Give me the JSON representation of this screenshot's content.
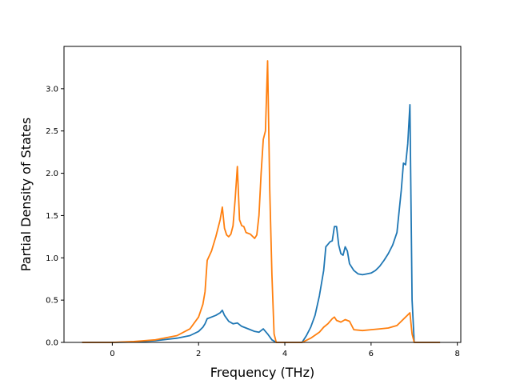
{
  "chart_data": {
    "type": "line",
    "title": "",
    "xlabel": "Frequency (THz)",
    "ylabel": "Partial Density of States",
    "xlim": [
      -1.12,
      8.08
    ],
    "ylim": [
      0.0,
      3.5
    ],
    "xticks": [
      0,
      2,
      4,
      6,
      8
    ],
    "xtick_labels": [
      "0",
      "2",
      "4",
      "6",
      "8"
    ],
    "yticks": [
      0.0,
      0.5,
      1.0,
      1.5,
      2.0,
      2.5,
      3.0
    ],
    "ytick_labels": [
      "0.0",
      "0.5",
      "1.0",
      "1.5",
      "2.0",
      "2.5",
      "3.0"
    ],
    "grid": false,
    "legend": "none",
    "series": [
      {
        "color": "#1f77b4",
        "points": [
          [
            -0.7,
            0.0
          ],
          [
            0.0,
            0.0
          ],
          [
            0.5,
            0.005
          ],
          [
            1.0,
            0.02
          ],
          [
            1.5,
            0.05
          ],
          [
            1.8,
            0.08
          ],
          [
            2.0,
            0.13
          ],
          [
            2.1,
            0.18
          ],
          [
            2.15,
            0.22
          ],
          [
            2.2,
            0.28
          ],
          [
            2.3,
            0.3
          ],
          [
            2.4,
            0.32
          ],
          [
            2.5,
            0.35
          ],
          [
            2.55,
            0.38
          ],
          [
            2.6,
            0.32
          ],
          [
            2.7,
            0.25
          ],
          [
            2.8,
            0.22
          ],
          [
            2.9,
            0.23
          ],
          [
            3.0,
            0.19
          ],
          [
            3.1,
            0.17
          ],
          [
            3.2,
            0.15
          ],
          [
            3.3,
            0.13
          ],
          [
            3.4,
            0.12
          ],
          [
            3.5,
            0.16
          ],
          [
            3.6,
            0.1
          ],
          [
            3.7,
            0.03
          ],
          [
            3.8,
            0.0
          ],
          [
            4.4,
            0.0
          ],
          [
            4.5,
            0.08
          ],
          [
            4.6,
            0.18
          ],
          [
            4.7,
            0.32
          ],
          [
            4.8,
            0.55
          ],
          [
            4.9,
            0.85
          ],
          [
            4.95,
            1.13
          ],
          [
            5.0,
            1.16
          ],
          [
            5.05,
            1.19
          ],
          [
            5.1,
            1.2
          ],
          [
            5.15,
            1.37
          ],
          [
            5.2,
            1.37
          ],
          [
            5.25,
            1.15
          ],
          [
            5.3,
            1.05
          ],
          [
            5.35,
            1.03
          ],
          [
            5.4,
            1.13
          ],
          [
            5.45,
            1.08
          ],
          [
            5.5,
            0.93
          ],
          [
            5.6,
            0.85
          ],
          [
            5.7,
            0.81
          ],
          [
            5.8,
            0.8
          ],
          [
            5.9,
            0.81
          ],
          [
            6.0,
            0.82
          ],
          [
            6.1,
            0.85
          ],
          [
            6.2,
            0.9
          ],
          [
            6.3,
            0.97
          ],
          [
            6.4,
            1.05
          ],
          [
            6.5,
            1.15
          ],
          [
            6.6,
            1.3
          ],
          [
            6.65,
            1.55
          ],
          [
            6.7,
            1.8
          ],
          [
            6.75,
            2.12
          ],
          [
            6.8,
            2.1
          ],
          [
            6.85,
            2.35
          ],
          [
            6.9,
            2.81
          ],
          [
            6.95,
            0.5
          ],
          [
            7.0,
            0.0
          ],
          [
            7.6,
            0.0
          ]
        ]
      },
      {
        "color": "#ff7f0e",
        "points": [
          [
            -0.7,
            0.0
          ],
          [
            0.0,
            0.0
          ],
          [
            0.5,
            0.01
          ],
          [
            1.0,
            0.03
          ],
          [
            1.5,
            0.08
          ],
          [
            1.8,
            0.16
          ],
          [
            2.0,
            0.3
          ],
          [
            2.1,
            0.45
          ],
          [
            2.15,
            0.6
          ],
          [
            2.2,
            0.97
          ],
          [
            2.3,
            1.08
          ],
          [
            2.4,
            1.25
          ],
          [
            2.5,
            1.45
          ],
          [
            2.55,
            1.6
          ],
          [
            2.6,
            1.35
          ],
          [
            2.65,
            1.27
          ],
          [
            2.7,
            1.25
          ],
          [
            2.75,
            1.28
          ],
          [
            2.8,
            1.38
          ],
          [
            2.85,
            1.7
          ],
          [
            2.9,
            2.08
          ],
          [
            2.95,
            1.45
          ],
          [
            3.0,
            1.38
          ],
          [
            3.05,
            1.37
          ],
          [
            3.1,
            1.3
          ],
          [
            3.2,
            1.28
          ],
          [
            3.3,
            1.23
          ],
          [
            3.35,
            1.27
          ],
          [
            3.4,
            1.5
          ],
          [
            3.45,
            2.0
          ],
          [
            3.5,
            2.4
          ],
          [
            3.55,
            2.5
          ],
          [
            3.6,
            3.33
          ],
          [
            3.65,
            1.8
          ],
          [
            3.7,
            0.8
          ],
          [
            3.75,
            0.1
          ],
          [
            3.8,
            0.0
          ],
          [
            4.4,
            0.0
          ],
          [
            4.6,
            0.05
          ],
          [
            4.8,
            0.12
          ],
          [
            4.9,
            0.18
          ],
          [
            5.0,
            0.22
          ],
          [
            5.1,
            0.28
          ],
          [
            5.15,
            0.3
          ],
          [
            5.2,
            0.26
          ],
          [
            5.3,
            0.24
          ],
          [
            5.4,
            0.27
          ],
          [
            5.5,
            0.25
          ],
          [
            5.6,
            0.15
          ],
          [
            5.8,
            0.14
          ],
          [
            6.0,
            0.15
          ],
          [
            6.2,
            0.16
          ],
          [
            6.4,
            0.17
          ],
          [
            6.6,
            0.2
          ],
          [
            6.7,
            0.25
          ],
          [
            6.8,
            0.3
          ],
          [
            6.9,
            0.35
          ],
          [
            6.95,
            0.1
          ],
          [
            7.0,
            0.0
          ],
          [
            7.6,
            0.0
          ]
        ]
      }
    ]
  }
}
